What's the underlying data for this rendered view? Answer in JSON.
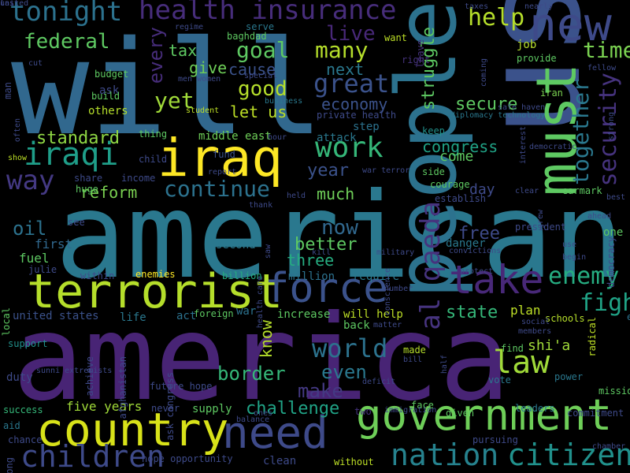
{
  "words": [
    {
      "text": "will",
      "color": "#31688e"
    },
    {
      "text": "american",
      "color": "#2a788e"
    },
    {
      "text": "america",
      "color": "#482475"
    },
    {
      "text": "us",
      "color": "#3b528b"
    },
    {
      "text": "people",
      "color": "#2c728e"
    },
    {
      "text": "new",
      "color": "#3e4a89"
    },
    {
      "text": "must",
      "color": "#5ec962"
    },
    {
      "text": "iraq",
      "color": "#fde725"
    },
    {
      "text": "terrorist",
      "color": "#b5de2b"
    },
    {
      "text": "force",
      "color": "#3b528b"
    },
    {
      "text": "need",
      "color": "#3e4a89"
    },
    {
      "text": "government",
      "color": "#6ece58"
    },
    {
      "text": "country",
      "color": "#d8e219"
    },
    {
      "text": "take",
      "color": "#482878"
    },
    {
      "text": "law",
      "color": "#a0da39"
    },
    {
      "text": "nation",
      "color": "#26828e"
    },
    {
      "text": "citizen",
      "color": "#21918c"
    },
    {
      "text": "children",
      "color": "#3e4a89"
    },
    {
      "text": "al qaeda",
      "color": "#46337e"
    },
    {
      "text": "health insurance",
      "color": "#472d7b"
    },
    {
      "text": "tonight",
      "color": "#2c728e"
    },
    {
      "text": "iraqi",
      "color": "#1f9e89"
    },
    {
      "text": "world",
      "color": "#2c728e"
    },
    {
      "text": "security",
      "color": "#46337e"
    },
    {
      "text": "together",
      "color": "#2a788e"
    },
    {
      "text": "enemy",
      "color": "#26ad81"
    },
    {
      "text": "fight",
      "color": "#20a386"
    },
    {
      "text": "work",
      "color": "#35b779"
    },
    {
      "text": "way",
      "color": "#443983"
    },
    {
      "text": "continue",
      "color": "#2c728e"
    },
    {
      "text": "help",
      "color": "#b5de2b"
    },
    {
      "text": "time",
      "color": "#7ad151"
    },
    {
      "text": "great",
      "color": "#3b528b"
    },
    {
      "text": "goal",
      "color": "#5ec962"
    },
    {
      "text": "many",
      "color": "#b5de2b"
    },
    {
      "text": "good",
      "color": "#b5de2b"
    },
    {
      "text": "yet",
      "color": "#a0da39"
    },
    {
      "text": "federal",
      "color": "#5ec962"
    },
    {
      "text": "every",
      "color": "#472d7b"
    },
    {
      "text": "now",
      "color": "#31688e"
    },
    {
      "text": "even",
      "color": "#2a788e"
    },
    {
      "text": "make",
      "color": "#443983"
    },
    {
      "text": "border",
      "color": "#35b779"
    },
    {
      "text": "challenge",
      "color": "#20a386"
    },
    {
      "text": "live",
      "color": "#482878"
    },
    {
      "text": "standard",
      "color": "#8fd744"
    },
    {
      "text": "reform",
      "color": "#7ad151"
    },
    {
      "text": "oil",
      "color": "#2c728e"
    },
    {
      "text": "congress",
      "color": "#20a386"
    },
    {
      "text": "secure",
      "color": "#5ec962"
    },
    {
      "text": "struggle",
      "color": "#5ec962"
    },
    {
      "text": "year",
      "color": "#3b528b"
    },
    {
      "text": "economy",
      "color": "#3b528b"
    },
    {
      "text": "state",
      "color": "#35b779"
    },
    {
      "text": "know",
      "color": "#b5de2b"
    },
    {
      "text": "better",
      "color": "#5ec962"
    },
    {
      "text": "free",
      "color": "#3e4a89"
    },
    {
      "text": "much",
      "color": "#6ece58"
    },
    {
      "text": "give",
      "color": "#6ece58"
    },
    {
      "text": "tax",
      "color": "#5ec962"
    },
    {
      "text": "let us",
      "color": "#bddf26"
    },
    {
      "text": "next",
      "color": "#2a788e"
    },
    {
      "text": "cause",
      "color": "#3b528b"
    },
    {
      "text": "day",
      "color": "#3e4a89"
    },
    {
      "text": "three",
      "color": "#26ad81"
    },
    {
      "text": "five years",
      "color": "#a0da39"
    },
    {
      "text": "united states",
      "color": "#3b528b"
    },
    {
      "text": "first",
      "color": "#31688e"
    },
    {
      "text": "come",
      "color": "#5ec962"
    },
    {
      "text": "plan",
      "color": "#bddf26"
    },
    {
      "text": "shi'a",
      "color": "#a0da39"
    },
    {
      "text": "job",
      "color": "#b5de2b"
    },
    {
      "text": "fuel",
      "color": "#5ec962"
    },
    {
      "text": "second",
      "color": "#2a788e"
    },
    {
      "text": "million",
      "color": "#2c728e"
    },
    {
      "text": "require",
      "color": "#2a788e"
    },
    {
      "text": "war",
      "color": "#2c728e"
    },
    {
      "text": "supply",
      "color": "#5ec962"
    },
    {
      "text": "step",
      "color": "#2c728e"
    },
    {
      "text": "will help",
      "color": "#bddf26"
    },
    {
      "text": "increase",
      "color": "#5ec962"
    },
    {
      "text": "support",
      "color": "#21918c"
    },
    {
      "text": "made",
      "color": "#b5de2b"
    },
    {
      "text": "vote",
      "color": "#2a788e"
    },
    {
      "text": "leaders",
      "color": "#2a788e"
    },
    {
      "text": "success",
      "color": "#35b779"
    },
    {
      "text": "duty",
      "color": "#3e4a89"
    },
    {
      "text": "danger",
      "color": "#2a788e"
    },
    {
      "text": "life",
      "color": "#2a788e"
    },
    {
      "text": "act",
      "color": "#2c728e"
    },
    {
      "text": "end",
      "color": "#2c728e"
    },
    {
      "text": "one",
      "color": "#5ec962"
    },
    {
      "text": "back",
      "color": "#5ec962"
    },
    {
      "text": "middle east",
      "color": "#6ece58"
    },
    {
      "text": "keep",
      "color": "#21918c"
    },
    {
      "text": "side",
      "color": "#5ec962"
    },
    {
      "text": "courage",
      "color": "#5ec962"
    },
    {
      "text": "establish",
      "color": "#3e4a89"
    },
    {
      "text": "attack",
      "color": "#2a788e"
    },
    {
      "text": "others",
      "color": "#b5de2b"
    },
    {
      "text": "ask",
      "color": "#3e4a89"
    },
    {
      "text": "build",
      "color": "#5ec962"
    },
    {
      "text": "budget",
      "color": "#5ec962"
    },
    {
      "text": "want",
      "color": "#bddf26"
    },
    {
      "text": "right",
      "color": "#46337e"
    },
    {
      "text": "leave",
      "color": "#46337e"
    },
    {
      "text": "serve",
      "color": "#2a788e"
    },
    {
      "text": "baghdad",
      "color": "#5ec962"
    },
    {
      "text": "provide",
      "color": "#5ec962"
    },
    {
      "text": "iran",
      "color": "#7ad151"
    },
    {
      "text": "fund",
      "color": "#3b528b"
    },
    {
      "text": "child",
      "color": "#3e4a89"
    },
    {
      "text": "thing",
      "color": "#5ec962"
    },
    {
      "text": "share",
      "color": "#3e4a89"
    },
    {
      "text": "income",
      "color": "#3e4a89"
    },
    {
      "text": "enemies",
      "color": "#fde725"
    },
    {
      "text": "billion",
      "color": "#26ad81"
    },
    {
      "text": "within",
      "color": "#3e4a89"
    },
    {
      "text": "local",
      "color": "#5ec962"
    },
    {
      "text": "julie",
      "color": "#3e4a89"
    },
    {
      "text": "see",
      "color": "#3e4a89"
    },
    {
      "text": "huge",
      "color": "#5ec962"
    },
    {
      "text": "foreign",
      "color": "#5ec962"
    },
    {
      "text": "achieve",
      "color": "#3e4a89"
    },
    {
      "text": "afghanistan",
      "color": "#3e4a89"
    },
    {
      "text": "future hope",
      "color": "#3e4a89"
    },
    {
      "text": "ask congress",
      "color": "#3e4a89"
    },
    {
      "text": "hope opportunity",
      "color": "#3e4a89"
    },
    {
      "text": "never",
      "color": "#3e4a89"
    },
    {
      "text": "clean",
      "color": "#3e4a89"
    },
    {
      "text": "without",
      "color": "#bddf26"
    },
    {
      "text": "pursuing",
      "color": "#3e4a89"
    },
    {
      "text": "two",
      "color": "#46337e"
    },
    {
      "text": "face",
      "color": "#5ec962"
    },
    {
      "text": "given",
      "color": "#5ec962"
    },
    {
      "text": "commitment",
      "color": "#3e4a89"
    },
    {
      "text": "mission",
      "color": "#5ec962"
    },
    {
      "text": "power",
      "color": "#2a788e"
    },
    {
      "text": "find",
      "color": "#5ec962"
    },
    {
      "text": "earmark",
      "color": "#5ec962"
    },
    {
      "text": "schools",
      "color": "#b5de2b"
    },
    {
      "text": "radical",
      "color": "#bddf26"
    },
    {
      "text": "democracy",
      "color": "#3e4a89"
    },
    {
      "text": "president",
      "color": "#3e4a89"
    },
    {
      "text": "aid",
      "color": "#2a788e"
    },
    {
      "text": "chance",
      "color": "#3e4a89"
    },
    {
      "text": "long",
      "color": "#3e4a89"
    },
    {
      "text": "man",
      "color": "#3e4a89"
    },
    {
      "text": "diplomacy technology",
      "color": "#2a788e"
    },
    {
      "text": "private health",
      "color": "#3e4a89"
    },
    {
      "text": "student",
      "color": "#bddf26"
    },
    {
      "text": "business",
      "color": "#2a788e"
    },
    {
      "text": "special",
      "color": "#3e4a89"
    },
    {
      "text": "men women",
      "color": "#3e4a89"
    },
    {
      "text": "regime",
      "color": "#3e4a89"
    },
    {
      "text": "taxes",
      "color": "#3e4a89"
    },
    {
      "text": "nearly",
      "color": "#3e4a89"
    },
    {
      "text": "fellow",
      "color": "#3e4a89"
    },
    {
      "text": "safe haven",
      "color": "#3e4a89"
    },
    {
      "text": "strong",
      "color": "#3e4a89"
    },
    {
      "text": "interest",
      "color": "#3e4a89"
    },
    {
      "text": "democratic",
      "color": "#3e4a89"
    },
    {
      "text": "coming",
      "color": "#3e4a89"
    },
    {
      "text": "clear",
      "color": "#3e4a89"
    },
    {
      "text": "grew",
      "color": "#3e4a89"
    },
    {
      "text": "best",
      "color": "#3e4a89"
    },
    {
      "text": "ahead",
      "color": "#3e4a89"
    },
    {
      "text": "use",
      "color": "#3e4a89"
    },
    {
      "text": "begin",
      "color": "#3e4a89"
    },
    {
      "text": "report",
      "color": "#3e4a89"
    },
    {
      "text": "held",
      "color": "#3e4a89"
    },
    {
      "text": "thank",
      "color": "#3e4a89"
    },
    {
      "text": "saw",
      "color": "#3e4a89"
    },
    {
      "text": "health care",
      "color": "#3e4a89"
    },
    {
      "text": "kill",
      "color": "#3e4a89"
    },
    {
      "text": "convictions",
      "color": "#3e4a89"
    },
    {
      "text": "conscience",
      "color": "#3e4a89"
    },
    {
      "text": "military",
      "color": "#3e4a89"
    },
    {
      "text": "protect",
      "color": "#3e4a89"
    },
    {
      "text": "number",
      "color": "#3e4a89"
    },
    {
      "text": "social",
      "color": "#3e4a89"
    },
    {
      "text": "members",
      "color": "#3e4a89"
    },
    {
      "text": "matter",
      "color": "#3e4a89"
    },
    {
      "text": "bill",
      "color": "#3e4a89"
    },
    {
      "text": "half",
      "color": "#3e4a89"
    },
    {
      "text": "deficit",
      "color": "#3e4a89"
    },
    {
      "text": "immigration",
      "color": "#3e4a89"
    },
    {
      "text": "ones",
      "color": "#3e4a89"
    },
    {
      "text": "balance",
      "color": "#3e4a89"
    },
    {
      "text": "chamber",
      "color": "#3e4a89"
    },
    {
      "text": "sunni extremists",
      "color": "#3e4a89"
    },
    {
      "text": "war terror",
      "color": "#3e4a89"
    },
    {
      "text": "often",
      "color": "#3e4a89"
    },
    {
      "text": "show",
      "color": "#bddf26"
    },
    {
      "text": "cut",
      "color": "#3e4a89"
    },
    {
      "text": "hour",
      "color": "#3e4a89"
    },
    {
      "text": "last",
      "color": "#3e4a89"
    },
    {
      "text": "united",
      "color": "#3e4a89"
    }
  ]
}
